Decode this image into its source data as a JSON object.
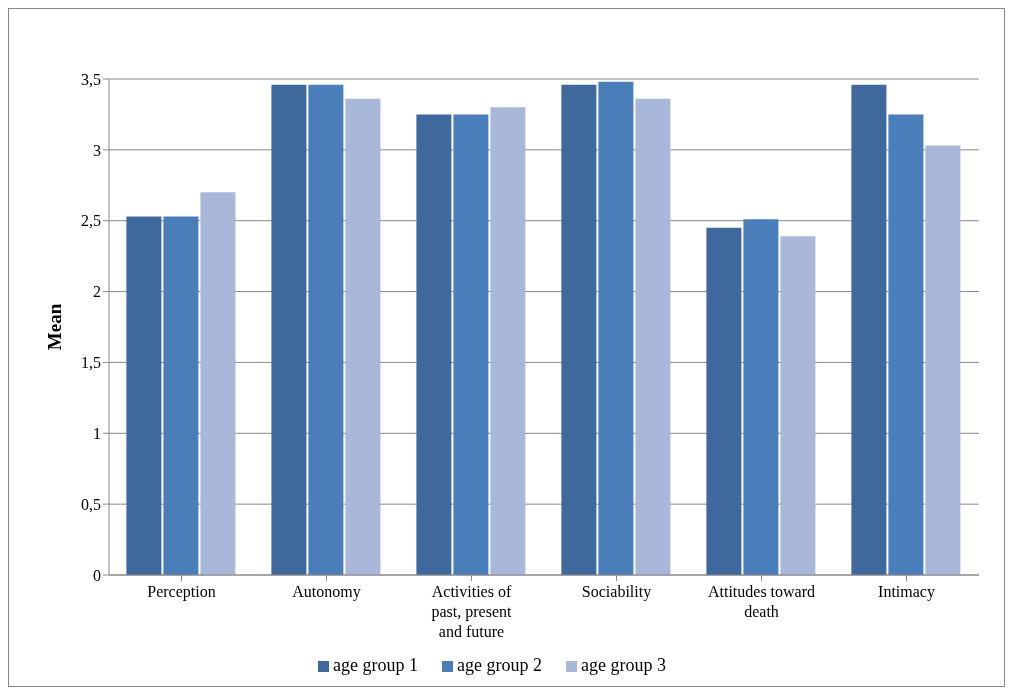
{
  "chart_data": {
    "type": "bar",
    "ylabel": "Mean",
    "categories": [
      "Perception",
      "Autonomy",
      "Activities of past, present and future",
      "Sociability",
      "Attitudes toward death",
      "Intimacy"
    ],
    "series": [
      {
        "name": "age group 1",
        "color": "#3f689c",
        "values": [
          2.53,
          3.46,
          3.25,
          3.46,
          2.45,
          3.46
        ]
      },
      {
        "name": "age group 2",
        "color": "#4a7ebb",
        "values": [
          2.53,
          3.46,
          3.25,
          3.48,
          2.51,
          3.25
        ]
      },
      {
        "name": "age group 3",
        "color": "#a9b8d9",
        "values": [
          2.7,
          3.36,
          3.3,
          3.36,
          2.39,
          3.03
        ]
      }
    ],
    "ylim": [
      0,
      3.5
    ],
    "yticks": [
      0,
      {
        "value": 0.5,
        "label": "0,5"
      },
      1,
      {
        "value": 1.5,
        "label": "1,5"
      },
      2,
      {
        "value": 2.5,
        "label": "2,5"
      },
      3,
      {
        "value": 3.5,
        "label": "3,5"
      }
    ],
    "grid": "y",
    "legend": "bottom"
  }
}
